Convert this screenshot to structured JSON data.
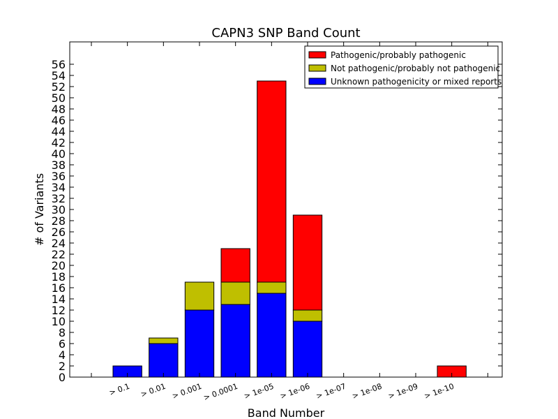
{
  "chart_data": {
    "type": "bar",
    "stacked": true,
    "title": "CAPN3 SNP Band Count",
    "xlabel": "Band Number",
    "ylabel": "# of Variants",
    "categories": [
      "> 0.1",
      "> 0.01",
      "> 0.001",
      "> 0.0001",
      "> 1e-05",
      "> 1e-06",
      "> 1e-07",
      "> 1e-08",
      "> 1e-09",
      "> 1e-10"
    ],
    "series": [
      {
        "name": "Unknown pathogenicity or mixed reports",
        "color": "#0000ff",
        "values": [
          2,
          6,
          12,
          13,
          15,
          10,
          0,
          0,
          0,
          0
        ]
      },
      {
        "name": "Not pathogenic/probably not pathogenic",
        "color": "#bfbf00",
        "values": [
          0,
          1,
          5,
          4,
          2,
          2,
          0,
          0,
          0,
          0
        ]
      },
      {
        "name": "Pathogenic/probably pathogenic",
        "color": "#ff0000",
        "values": [
          0,
          0,
          0,
          6,
          36,
          17,
          0,
          0,
          0,
          2
        ]
      }
    ],
    "legend_order": [
      2,
      1,
      0
    ],
    "ylim": [
      0,
      60
    ],
    "yticks": [
      0,
      2,
      4,
      6,
      8,
      10,
      12,
      14,
      16,
      18,
      20,
      22,
      24,
      26,
      28,
      30,
      32,
      34,
      36,
      38,
      40,
      42,
      44,
      46,
      48,
      50,
      52,
      54,
      56
    ],
    "legend_position": "top-right",
    "grid": false
  }
}
